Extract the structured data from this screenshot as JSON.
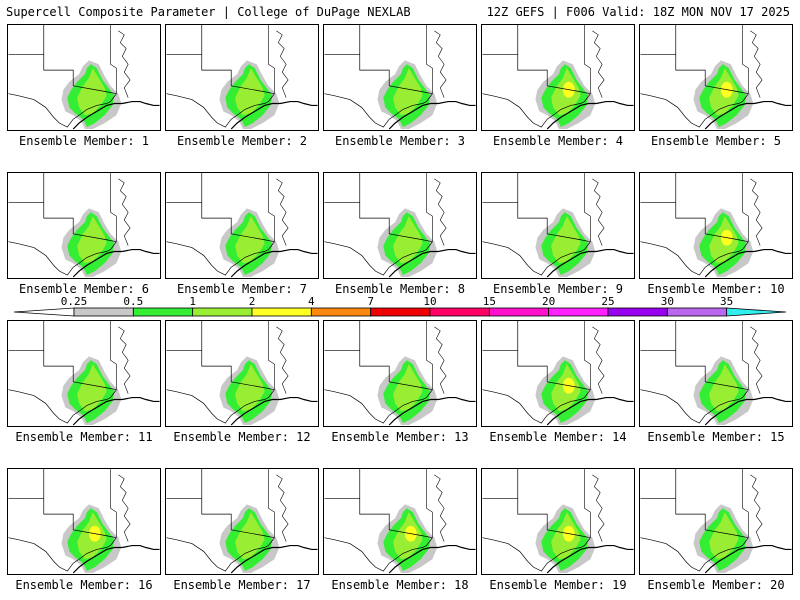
{
  "header": {
    "title_left": "Supercell Composite Parameter | College of DuPage NEXLAB",
    "title_right": "12Z GEFS | F006 Valid: 18Z MON NOV 17 2025"
  },
  "colorbar": {
    "labels": [
      "0.25",
      "0.5",
      "1",
      "2",
      "4",
      "7",
      "10",
      "15",
      "20",
      "25",
      "30",
      "35"
    ],
    "colors": [
      "#c8c8c8",
      "#33ee33",
      "#99ee33",
      "#ffff22",
      "#ff8811",
      "#ee0000",
      "#ff0066",
      "#ff11cc",
      "#ff22ff",
      "#9900ee",
      "#bb66ee",
      "#33eeee"
    ]
  },
  "members": [
    {
      "label": "Ensemble Member: 1",
      "yellow": false
    },
    {
      "label": "Ensemble Member: 2",
      "yellow": false
    },
    {
      "label": "Ensemble Member: 3",
      "yellow": false
    },
    {
      "label": "Ensemble Member: 4",
      "yellow": true
    },
    {
      "label": "Ensemble Member: 5",
      "yellow": true
    },
    {
      "label": "Ensemble Member: 6",
      "yellow": false
    },
    {
      "label": "Ensemble Member: 7",
      "yellow": false
    },
    {
      "label": "Ensemble Member: 8",
      "yellow": false
    },
    {
      "label": "Ensemble Member: 9",
      "yellow": false
    },
    {
      "label": "Ensemble Member: 10",
      "yellow": true
    },
    {
      "label": "Ensemble Member: 11",
      "yellow": false
    },
    {
      "label": "Ensemble Member: 12",
      "yellow": false
    },
    {
      "label": "Ensemble Member: 13",
      "yellow": false
    },
    {
      "label": "Ensemble Member: 14",
      "yellow": true
    },
    {
      "label": "Ensemble Member: 15",
      "yellow": false
    },
    {
      "label": "Ensemble Member: 16",
      "yellow": true
    },
    {
      "label": "Ensemble Member: 17",
      "yellow": false
    },
    {
      "label": "Ensemble Member: 18",
      "yellow": true
    },
    {
      "label": "Ensemble Member: 19",
      "yellow": true
    },
    {
      "label": "Ensemble Member: 20",
      "yellow": false
    }
  ]
}
